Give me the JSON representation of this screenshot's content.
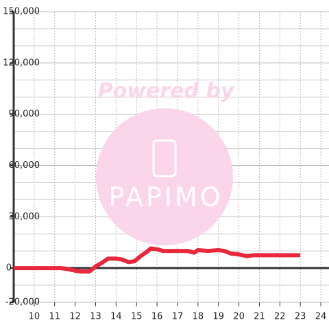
{
  "chart_data": {
    "type": "line",
    "x": [
      9,
      11,
      11.3,
      11.6,
      12,
      12.3,
      12.7,
      13,
      13.3,
      13.6,
      14,
      14.3,
      14.6,
      14.9,
      15.2,
      15.5,
      15.7,
      16,
      16.3,
      17,
      17.5,
      17.8,
      18,
      18.5,
      19,
      19.3,
      19.6,
      20,
      20.4,
      20.7,
      21,
      23
    ],
    "series": [
      {
        "color": "#e8283c",
        "values": [
          0,
          0,
          0,
          -500,
          -1500,
          -2000,
          -2000,
          1000,
          3000,
          5500,
          5500,
          5000,
          3500,
          4000,
          7000,
          9500,
          11500,
          11000,
          10000,
          10000,
          10000,
          9000,
          10500,
          10000,
          10500,
          10000,
          8500,
          8000,
          7000,
          7500,
          7500,
          7500
        ]
      }
    ],
    "xlim": [
      9,
      24.4
    ],
    "xticks": [
      10,
      11,
      12,
      13,
      14,
      15,
      16,
      17,
      18,
      19,
      20,
      21,
      22,
      23,
      24
    ],
    "ylim": [
      -20000,
      150000
    ],
    "yticks": [
      {
        "value": -20000,
        "label": "-20,000"
      },
      0,
      {
        "value": 30000,
        "label": "30,000"
      },
      {
        "value": 60000,
        "label": "60,000"
      },
      {
        "value": 90000,
        "label": "90,000"
      },
      {
        "value": 120000,
        "label": "120,000"
      },
      {
        "value": 150000,
        "label": "150,000"
      }
    ],
    "y_minor_ticks": [
      -10000,
      10000,
      20000,
      40000,
      50000,
      70000,
      80000,
      100000,
      110000,
      130000,
      140000
    ],
    "grid": true,
    "watermark": {
      "line1": "Powered by",
      "line2": "PAPIMO"
    }
  }
}
